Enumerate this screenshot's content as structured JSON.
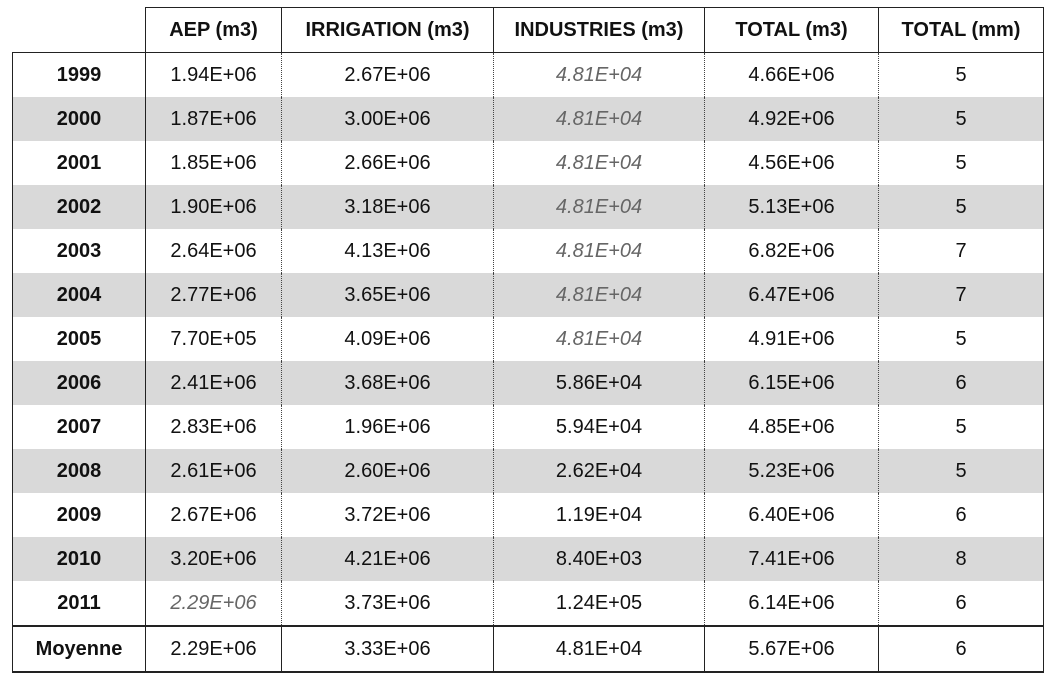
{
  "table": {
    "header": [
      "AEP (m3)",
      "IRRIGATION (m3)",
      "INDUSTRIES (m3)",
      "TOTAL (m3)",
      "TOTAL (mm)"
    ],
    "rows": [
      {
        "label": "1999",
        "cells": [
          "1.94E+06",
          "2.67E+06",
          "4.81E+04",
          "4.66E+06",
          "5"
        ]
      },
      {
        "label": "2000",
        "cells": [
          "1.87E+06",
          "3.00E+06",
          "4.81E+04",
          "4.92E+06",
          "5"
        ]
      },
      {
        "label": "2001",
        "cells": [
          "1.85E+06",
          "2.66E+06",
          "4.81E+04",
          "4.56E+06",
          "5"
        ]
      },
      {
        "label": "2002",
        "cells": [
          "1.90E+06",
          "3.18E+06",
          "4.81E+04",
          "5.13E+06",
          "5"
        ]
      },
      {
        "label": "2003",
        "cells": [
          "2.64E+06",
          "4.13E+06",
          "4.81E+04",
          "6.82E+06",
          "7"
        ]
      },
      {
        "label": "2004",
        "cells": [
          "2.77E+06",
          "3.65E+06",
          "4.81E+04",
          "6.47E+06",
          "7"
        ]
      },
      {
        "label": "2005",
        "cells": [
          "7.70E+05",
          "4.09E+06",
          "4.81E+04",
          "4.91E+06",
          "5"
        ]
      },
      {
        "label": "2006",
        "cells": [
          "2.41E+06",
          "3.68E+06",
          "5.86E+04",
          "6.15E+06",
          "6"
        ]
      },
      {
        "label": "2007",
        "cells": [
          "2.83E+06",
          "1.96E+06",
          "5.94E+04",
          "4.85E+06",
          "5"
        ]
      },
      {
        "label": "2008",
        "cells": [
          "2.61E+06",
          "2.60E+06",
          "2.62E+04",
          "5.23E+06",
          "5"
        ]
      },
      {
        "label": "2009",
        "cells": [
          "2.67E+06",
          "3.72E+06",
          "1.19E+04",
          "6.40E+06",
          "6"
        ]
      },
      {
        "label": "2010",
        "cells": [
          "3.20E+06",
          "4.21E+06",
          "8.40E+03",
          "7.41E+06",
          "8"
        ]
      },
      {
        "label": "2011",
        "cells": [
          "2.29E+06",
          "3.73E+06",
          "1.24E+05",
          "6.14E+06",
          "6"
        ]
      }
    ],
    "footer": {
      "label": "Moyenne",
      "cells": [
        "2.29E+06",
        "3.33E+06",
        "4.81E+04",
        "5.67E+06",
        "6"
      ]
    },
    "italic_cells": [
      [
        0,
        2
      ],
      [
        1,
        2
      ],
      [
        2,
        2
      ],
      [
        3,
        2
      ],
      [
        4,
        2
      ],
      [
        5,
        2
      ],
      [
        6,
        2
      ],
      [
        12,
        0
      ]
    ]
  }
}
